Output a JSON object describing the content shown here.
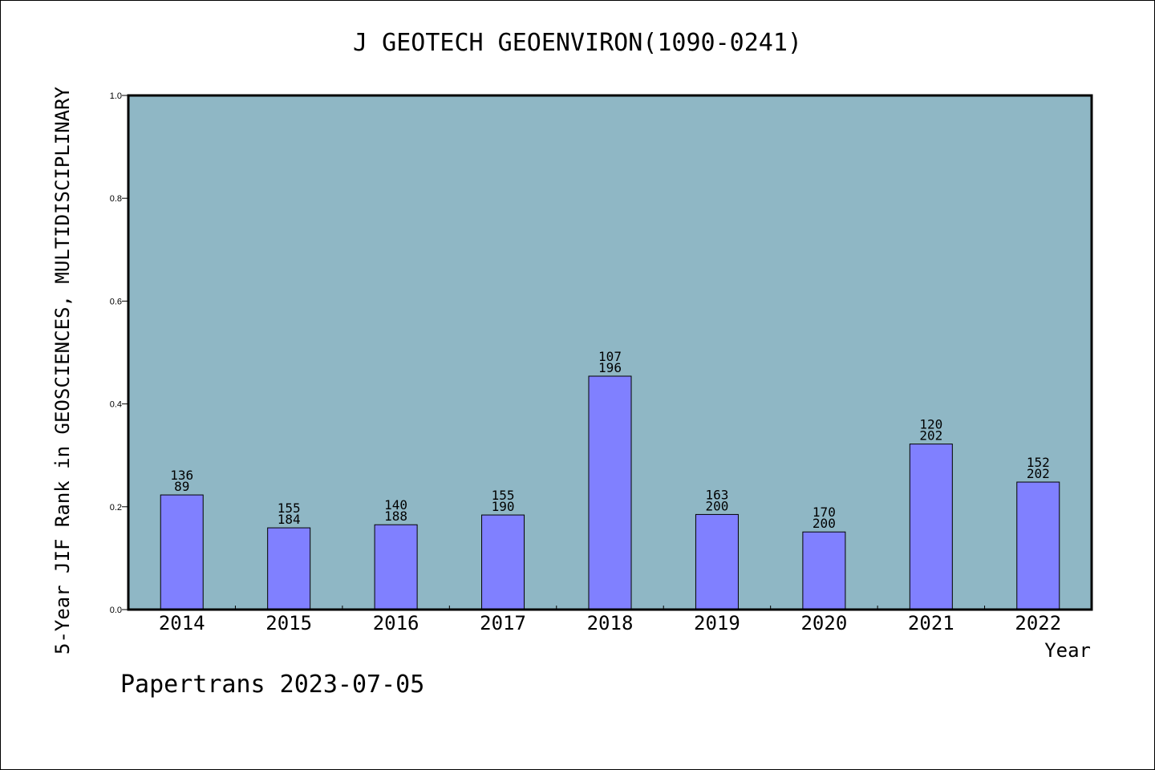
{
  "chart_data": {
    "type": "bar",
    "title": "J GEOTECH GEOENVIRON(1090-0241)",
    "xlabel": "Year",
    "ylabel": "5-Year JIF Rank in GEOSCIENCES, MULTIDISCIPLINARY",
    "ylim": [
      0,
      1.0
    ],
    "yticks": [
      "0.0",
      "0.2",
      "0.4",
      "0.6",
      "0.8",
      "1.0"
    ],
    "categories": [
      "2014",
      "2015",
      "2016",
      "2017",
      "2018",
      "2019",
      "2020",
      "2021",
      "2022"
    ],
    "values": [
      0.223,
      0.159,
      0.165,
      0.184,
      0.454,
      0.185,
      0.151,
      0.322,
      0.248
    ],
    "rank_labels": [
      "136",
      "155",
      "140",
      "155",
      "107",
      "163",
      "170",
      "120",
      "152"
    ],
    "total_labels": [
      "89",
      "184",
      "188",
      "190",
      "196",
      "200",
      "200",
      "202",
      "202"
    ],
    "grid": false,
    "colors": {
      "plot_background": "#8fb7c5",
      "bar": "#8080ff",
      "bar_edge": "#000000"
    }
  },
  "footer": {
    "text": "Papertrans 2023-07-05"
  }
}
